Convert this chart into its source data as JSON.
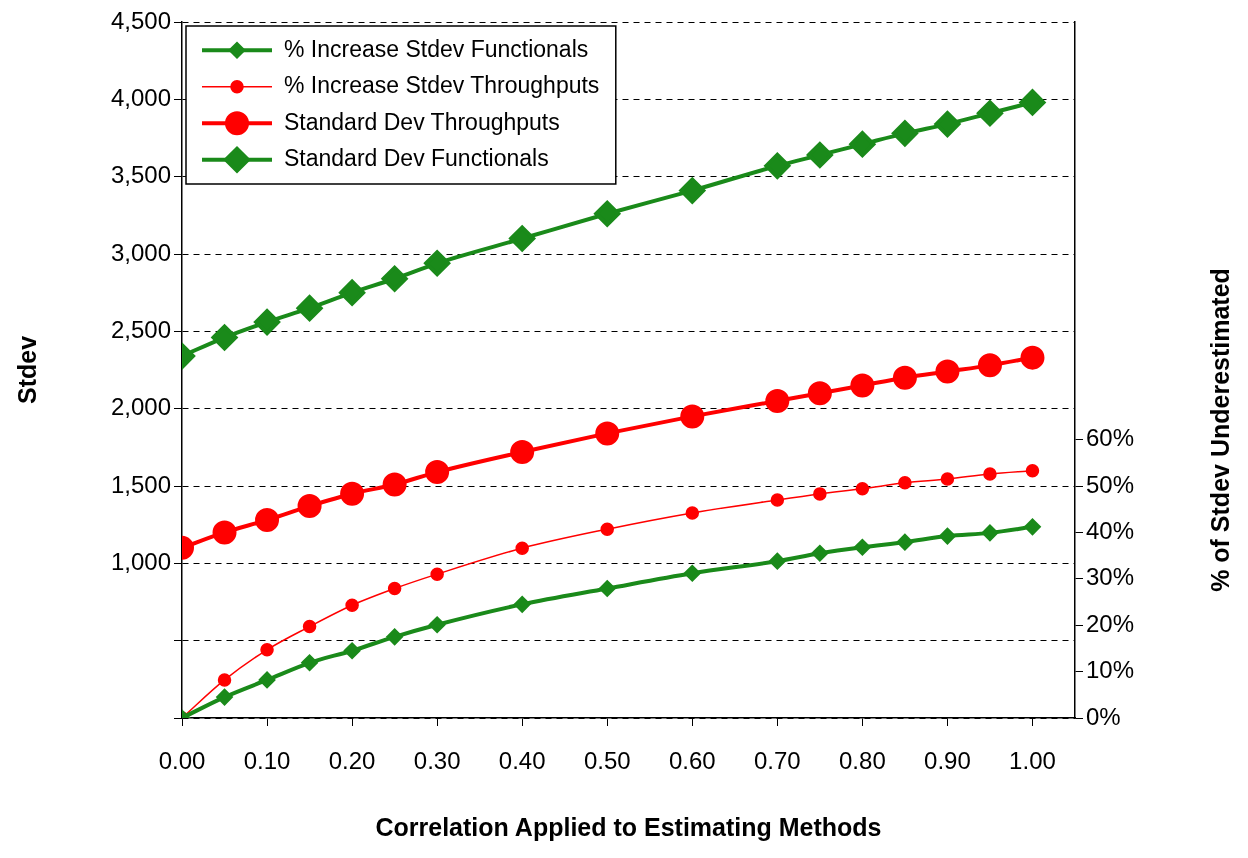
{
  "chart_data": {
    "type": "line",
    "xlabel": "Correlation Applied to Estimating Methods",
    "ylabel": "Stdev",
    "y2label": "% of Stdev Underestimated",
    "x": [
      0,
      0.05,
      0.1,
      0.15,
      0.2,
      0.25,
      0.3,
      0.4,
      0.5,
      0.6,
      0.7,
      0.75,
      0.8,
      0.85,
      0.9,
      0.95,
      1.0
    ],
    "series": [
      {
        "name": "% Increase Stdev Functionals",
        "color": "#1a8a1a",
        "axis": "y2",
        "marker": "diamond",
        "values": [
          0,
          4.5,
          8.2,
          11.9,
          14.5,
          17.5,
          20.1,
          24.5,
          27.9,
          31.2,
          33.8,
          35.5,
          36.8,
          37.9,
          39.2,
          39.9,
          41.2
        ]
      },
      {
        "name": "% Increase Stdev Throughputs",
        "color": "#ff0000",
        "axis": "y2",
        "marker": "circle",
        "values": [
          0,
          8.2,
          14.7,
          19.7,
          24.3,
          27.9,
          31,
          36.6,
          40.7,
          44.2,
          47,
          48.3,
          49.4,
          50.7,
          51.5,
          52.6,
          53.3
        ]
      },
      {
        "name": "Standard Dev Throughputs",
        "color": "#ff0000",
        "marker": "circle",
        "values": [
          1100,
          1200,
          1280,
          1370,
          1450,
          1510,
          1590,
          1720,
          1840,
          1950,
          2050,
          2100,
          2150,
          2200,
          2240,
          2280,
          2330
        ]
      },
      {
        "name": "Standard Dev Functionals",
        "color": "#1a8a1a",
        "marker": "diamond",
        "values": [
          2340,
          2460,
          2560,
          2650,
          2750,
          2840,
          2940,
          3100,
          3260,
          3410,
          3570,
          3640,
          3710,
          3780,
          3840,
          3910,
          3980
        ]
      }
    ],
    "xlim": [
      0,
      1.05
    ],
    "xticks": [
      {
        "value": 0,
        "label": "0.00"
      },
      {
        "value": 0.1,
        "label": "0.10"
      },
      {
        "value": 0.2,
        "label": "0.20"
      },
      {
        "value": 0.3,
        "label": "0.30"
      },
      {
        "value": 0.4,
        "label": "0.40"
      },
      {
        "value": 0.5,
        "label": "0.50"
      },
      {
        "value": 0.6,
        "label": "0.60"
      },
      {
        "value": 0.7,
        "label": "0.70"
      },
      {
        "value": 0.8,
        "label": "0.80"
      },
      {
        "value": 0.9,
        "label": "0.90"
      },
      {
        "value": 1,
        "label": "1.00"
      }
    ],
    "ylim": [
      0,
      4500
    ],
    "yticks": [
      {
        "value": 0,
        "label": null
      },
      {
        "value": 500,
        "label": null
      },
      {
        "value": 1000,
        "label": "1,000"
      },
      {
        "value": 1500,
        "label": "1,500"
      },
      {
        "value": 2000,
        "label": "2,000"
      },
      {
        "value": 2500,
        "label": "2,500"
      },
      {
        "value": 3000,
        "label": "3,000"
      },
      {
        "value": 3500,
        "label": "3,500"
      },
      {
        "value": 4000,
        "label": "4,000"
      },
      {
        "value": 4500,
        "label": "4,500"
      }
    ],
    "y2lim": [
      0,
      150
    ],
    "y2ticks": [
      {
        "value": 0,
        "label": "0%"
      },
      {
        "value": 10,
        "label": "10%"
      },
      {
        "value": 20,
        "label": "20%"
      },
      {
        "value": 30,
        "label": "30%"
      },
      {
        "value": 40,
        "label": "40%"
      },
      {
        "value": 50,
        "label": "50%"
      },
      {
        "value": 60,
        "label": "60%"
      }
    ],
    "grid": "y",
    "legend": "top left",
    "line_style": "solid"
  }
}
